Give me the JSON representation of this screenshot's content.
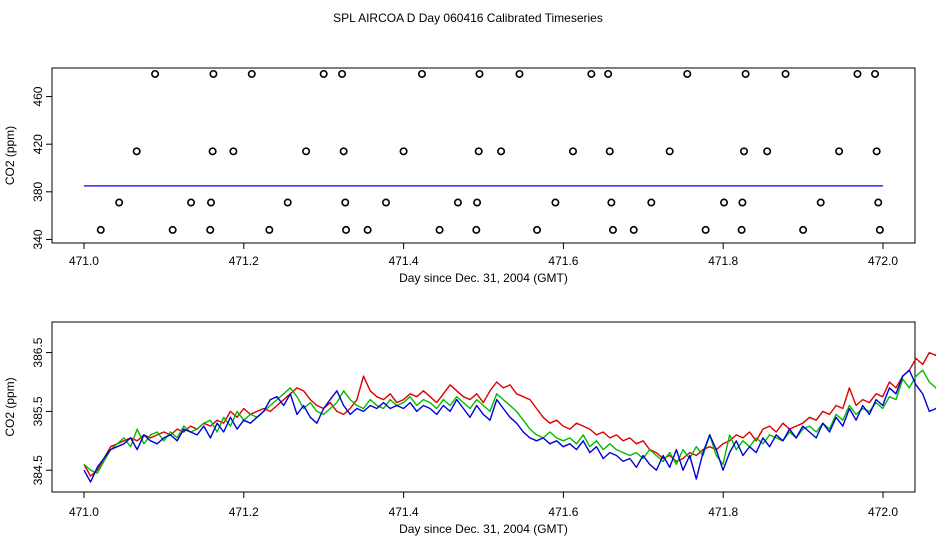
{
  "title": "SPL AIRCOA D  Day 060416  Calibrated Timeseries",
  "chart_data": [
    {
      "type": "scatter",
      "xlabel": "Day since Dec. 31, 2004 (GMT)",
      "ylabel": "CO2 (ppm)",
      "xlim": [
        470.96,
        472.04
      ],
      "ylim": [
        337,
        484
      ],
      "xticks": [
        471.0,
        471.2,
        471.4,
        471.6,
        471.8,
        472.0
      ],
      "xtick_labels": [
        "471.0",
        "471.2",
        "471.4",
        "471.6",
        "471.8",
        "472.0"
      ],
      "yticks": [
        340,
        380,
        420,
        460
      ],
      "ytick_labels": [
        "340",
        "380",
        "420",
        "460"
      ],
      "line_color": "#0000ff",
      "line_value": 385.0,
      "line_x": [
        471.0,
        472.0
      ],
      "point_color": "#000000",
      "points": [
        [
          471.021,
          348
        ],
        [
          471.044,
          371
        ],
        [
          471.066,
          414
        ],
        [
          471.089,
          479
        ],
        [
          471.111,
          348
        ],
        [
          471.134,
          371
        ],
        [
          471.158,
          348
        ],
        [
          471.159,
          371
        ],
        [
          471.161,
          414
        ],
        [
          471.162,
          479
        ],
        [
          471.187,
          414
        ],
        [
          471.21,
          479
        ],
        [
          471.232,
          348
        ],
        [
          471.255,
          371
        ],
        [
          471.278,
          414
        ],
        [
          471.3,
          479
        ],
        [
          471.323,
          479
        ],
        [
          471.325,
          414
        ],
        [
          471.327,
          371
        ],
        [
          471.328,
          348
        ],
        [
          471.355,
          348
        ],
        [
          471.378,
          371
        ],
        [
          471.4,
          414
        ],
        [
          471.423,
          479
        ],
        [
          471.445,
          348
        ],
        [
          471.468,
          371
        ],
        [
          471.491,
          348
        ],
        [
          471.492,
          371
        ],
        [
          471.494,
          414
        ],
        [
          471.495,
          479
        ],
        [
          471.522,
          414
        ],
        [
          471.545,
          479
        ],
        [
          471.567,
          348
        ],
        [
          471.59,
          371
        ],
        [
          471.612,
          414
        ],
        [
          471.635,
          479
        ],
        [
          471.656,
          479
        ],
        [
          471.658,
          414
        ],
        [
          471.66,
          371
        ],
        [
          471.662,
          348
        ],
        [
          471.688,
          348
        ],
        [
          471.71,
          371
        ],
        [
          471.733,
          414
        ],
        [
          471.755,
          479
        ],
        [
          471.778,
          348
        ],
        [
          471.801,
          371
        ],
        [
          471.823,
          348
        ],
        [
          471.824,
          371
        ],
        [
          471.826,
          414
        ],
        [
          471.828,
          479
        ],
        [
          471.855,
          414
        ],
        [
          471.878,
          479
        ],
        [
          471.9,
          348
        ],
        [
          471.922,
          371
        ],
        [
          471.945,
          414
        ],
        [
          471.968,
          479
        ],
        [
          471.99,
          479
        ],
        [
          471.992,
          414
        ],
        [
          471.994,
          371
        ],
        [
          471.996,
          348
        ]
      ]
    },
    {
      "type": "line",
      "xlabel": "Day since Dec. 31, 2004 (GMT)",
      "ylabel": "CO2 (ppm)",
      "xlim": [
        470.96,
        472.04
      ],
      "ylim": [
        384.13,
        387.02
      ],
      "xticks": [
        471.0,
        471.2,
        471.4,
        471.6,
        471.8,
        472.0
      ],
      "xtick_labels": [
        "471.0",
        "471.2",
        "471.4",
        "471.6",
        "471.8",
        "472.0"
      ],
      "yticks": [
        384.5,
        385.5,
        386.5
      ],
      "ytick_labels": [
        "384.5",
        "385.5",
        "386.5"
      ],
      "x_start": 471.0,
      "x_step": 0.00833,
      "series": [
        {
          "color": "#dd0000",
          "values": [
            384.6,
            384.4,
            384.5,
            384.7,
            384.9,
            384.95,
            385.0,
            385.05,
            385.0,
            385.1,
            385.05,
            385.1,
            385.15,
            385.1,
            385.2,
            385.15,
            385.25,
            385.2,
            385.3,
            385.25,
            385.35,
            385.3,
            385.5,
            385.4,
            385.55,
            385.45,
            385.5,
            385.55,
            385.5,
            385.6,
            385.7,
            385.8,
            385.9,
            385.85,
            385.7,
            385.6,
            385.55,
            385.65,
            385.5,
            385.45,
            385.55,
            385.7,
            386.1,
            385.85,
            385.75,
            385.7,
            385.8,
            385.65,
            385.7,
            385.8,
            385.75,
            385.85,
            385.75,
            385.65,
            385.8,
            385.95,
            385.85,
            385.75,
            385.7,
            385.8,
            385.65,
            385.85,
            386.0,
            385.9,
            385.95,
            385.8,
            385.75,
            385.7,
            385.55,
            385.4,
            385.3,
            385.35,
            385.25,
            385.2,
            385.3,
            385.25,
            385.2,
            385.1,
            385.15,
            385.05,
            385.1,
            385.0,
            385.05,
            384.95,
            385.0,
            384.85,
            384.8,
            384.7,
            384.75,
            384.65,
            384.7,
            384.8,
            384.75,
            384.85,
            384.9,
            384.85,
            384.95,
            385.0,
            385.1,
            385.05,
            385.15,
            385.0,
            385.2,
            385.25,
            385.15,
            385.3,
            385.2,
            385.25,
            385.3,
            385.4,
            385.35,
            385.5,
            385.45,
            385.6,
            385.55,
            385.9,
            385.6,
            385.7,
            385.65,
            385.8,
            385.75,
            386.0,
            385.9,
            386.1,
            386.2,
            386.4,
            386.3,
            386.5,
            386.45,
            386.9,
            386.0,
            385.7,
            385.75
          ]
        },
        {
          "color": "#00bb00",
          "values": [
            384.6,
            384.5,
            384.45,
            384.65,
            384.85,
            384.95,
            385.05,
            384.9,
            385.2,
            384.95,
            385.1,
            385.15,
            385.0,
            385.15,
            385.05,
            385.25,
            385.15,
            385.2,
            385.3,
            385.35,
            385.15,
            385.4,
            385.25,
            385.5,
            385.35,
            385.45,
            385.4,
            385.5,
            385.6,
            385.7,
            385.8,
            385.9,
            385.75,
            385.55,
            385.65,
            385.5,
            385.45,
            385.55,
            385.65,
            385.85,
            385.7,
            385.6,
            385.55,
            385.7,
            385.6,
            385.55,
            385.7,
            385.6,
            385.65,
            385.75,
            385.6,
            385.7,
            385.65,
            385.55,
            385.7,
            385.6,
            385.75,
            385.65,
            385.55,
            385.7,
            385.6,
            385.5,
            385.8,
            385.7,
            385.6,
            385.5,
            385.35,
            385.2,
            385.1,
            385.05,
            385.15,
            385.05,
            385.0,
            385.05,
            384.95,
            385.1,
            384.9,
            385.0,
            384.85,
            384.95,
            384.85,
            384.8,
            384.75,
            384.8,
            384.7,
            384.85,
            384.75,
            384.65,
            384.8,
            384.6,
            384.85,
            384.7,
            384.9,
            384.75,
            385.1,
            384.75,
            384.6,
            385.1,
            384.85,
            385.0,
            384.9,
            385.05,
            384.95,
            385.1,
            385.05,
            385.0,
            385.15,
            385.05,
            385.2,
            385.25,
            385.15,
            385.3,
            385.2,
            385.45,
            385.35,
            385.6,
            385.45,
            385.55,
            385.5,
            385.65,
            385.55,
            385.75,
            385.7,
            386.05,
            385.9,
            386.1,
            386.2,
            386.0,
            385.9,
            385.6,
            385.6
          ]
        },
        {
          "color": "#0000dd",
          "values": [
            384.5,
            384.3,
            384.55,
            384.7,
            384.85,
            384.9,
            384.95,
            385.05,
            384.85,
            385.1,
            385.0,
            384.95,
            385.05,
            385.1,
            385.0,
            385.2,
            385.15,
            385.1,
            385.25,
            385.05,
            385.3,
            385.15,
            385.4,
            385.2,
            385.35,
            385.3,
            385.4,
            385.5,
            385.7,
            385.75,
            385.6,
            385.8,
            385.45,
            385.6,
            385.4,
            385.3,
            385.55,
            385.7,
            385.85,
            385.6,
            385.45,
            385.55,
            385.5,
            385.6,
            385.55,
            385.65,
            385.55,
            385.6,
            385.55,
            385.65,
            385.5,
            385.6,
            385.55,
            385.45,
            385.6,
            385.5,
            385.7,
            385.55,
            385.4,
            385.6,
            385.45,
            385.35,
            385.7,
            385.55,
            385.4,
            385.3,
            385.15,
            385.05,
            385.0,
            385.05,
            384.95,
            385.0,
            384.9,
            384.95,
            384.85,
            385.0,
            384.8,
            384.9,
            384.7,
            384.8,
            384.75,
            384.65,
            384.7,
            384.55,
            384.75,
            384.6,
            384.5,
            384.75,
            384.55,
            384.85,
            384.5,
            384.75,
            384.35,
            384.8,
            385.1,
            384.85,
            384.5,
            384.8,
            385.0,
            384.75,
            384.9,
            384.8,
            385.05,
            384.9,
            385.1,
            385.0,
            385.2,
            385.05,
            385.25,
            385.15,
            385.05,
            385.3,
            385.15,
            385.4,
            385.25,
            385.55,
            385.35,
            385.6,
            385.45,
            385.7,
            385.6,
            385.9,
            385.8,
            386.1,
            386.2,
            385.95,
            385.8,
            385.5,
            385.55,
            385.7
          ]
        }
      ]
    }
  ]
}
